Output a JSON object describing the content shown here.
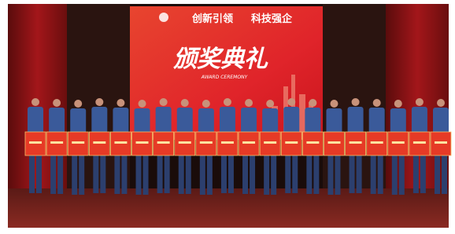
{
  "screen": {
    "slogan_left": "创新引领",
    "slogan_right": "科技强企",
    "headline": "颁奖典礼",
    "subtitle": "AWARD CEREMONY"
  }
}
